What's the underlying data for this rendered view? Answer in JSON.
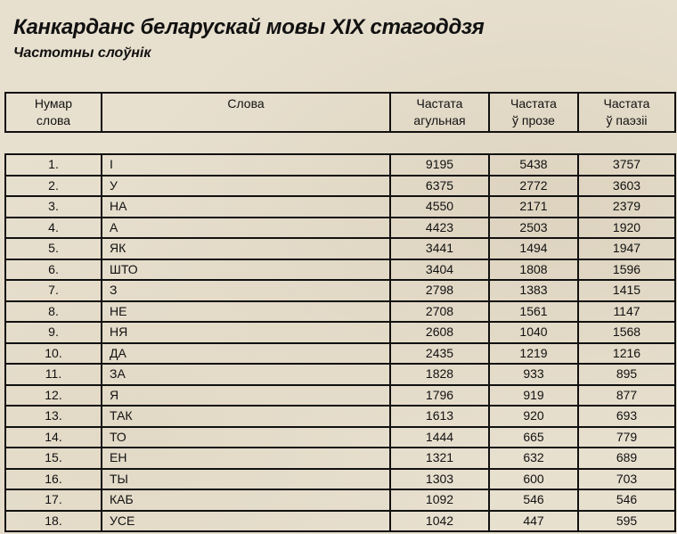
{
  "document": {
    "title": "Канкарданс беларускай мовы XIX стагоддзя",
    "subtitle": "Частотны слоўнік"
  },
  "table": {
    "headers": [
      {
        "line1": "Нумар",
        "line2": "слова"
      },
      {
        "line1": "Слова",
        "line2": ""
      },
      {
        "line1": "Частата",
        "line2": "агульная"
      },
      {
        "line1": "Частата",
        "line2": "ў прозе"
      },
      {
        "line1": "Частата",
        "line2": "ў паэзіі"
      }
    ],
    "rows": [
      [
        "1.",
        "І",
        "9195",
        "5438",
        "3757"
      ],
      [
        "2.",
        "У",
        "6375",
        "2772",
        "3603"
      ],
      [
        "3.",
        "НА",
        "4550",
        "2171",
        "2379"
      ],
      [
        "4.",
        "А",
        "4423",
        "2503",
        "1920"
      ],
      [
        "5.",
        "ЯК",
        "3441",
        "1494",
        "1947"
      ],
      [
        "6.",
        "ШТО",
        "3404",
        "1808",
        "1596"
      ],
      [
        "7.",
        "З",
        "2798",
        "1383",
        "1415"
      ],
      [
        "8.",
        "НЕ",
        "2708",
        "1561",
        "1147"
      ],
      [
        "9.",
        "НЯ",
        "2608",
        "1040",
        "1568"
      ],
      [
        "10.",
        "ДА",
        "2435",
        "1219",
        "1216"
      ],
      [
        "11.",
        "ЗА",
        "1828",
        "933",
        "895"
      ],
      [
        "12.",
        "Я",
        "1796",
        "919",
        "877"
      ],
      [
        "13.",
        "ТАК",
        "1613",
        "920",
        "693"
      ],
      [
        "14.",
        "ТО",
        "1444",
        "665",
        "779"
      ],
      [
        "15.",
        "ЕН",
        "1321",
        "632",
        "689"
      ],
      [
        "16.",
        "ТЫ",
        "1303",
        "600",
        "703"
      ],
      [
        "17.",
        "КАБ",
        "1092",
        "546",
        "546"
      ],
      [
        "18.",
        "УСЕ",
        "1042",
        "447",
        "595"
      ]
    ]
  }
}
